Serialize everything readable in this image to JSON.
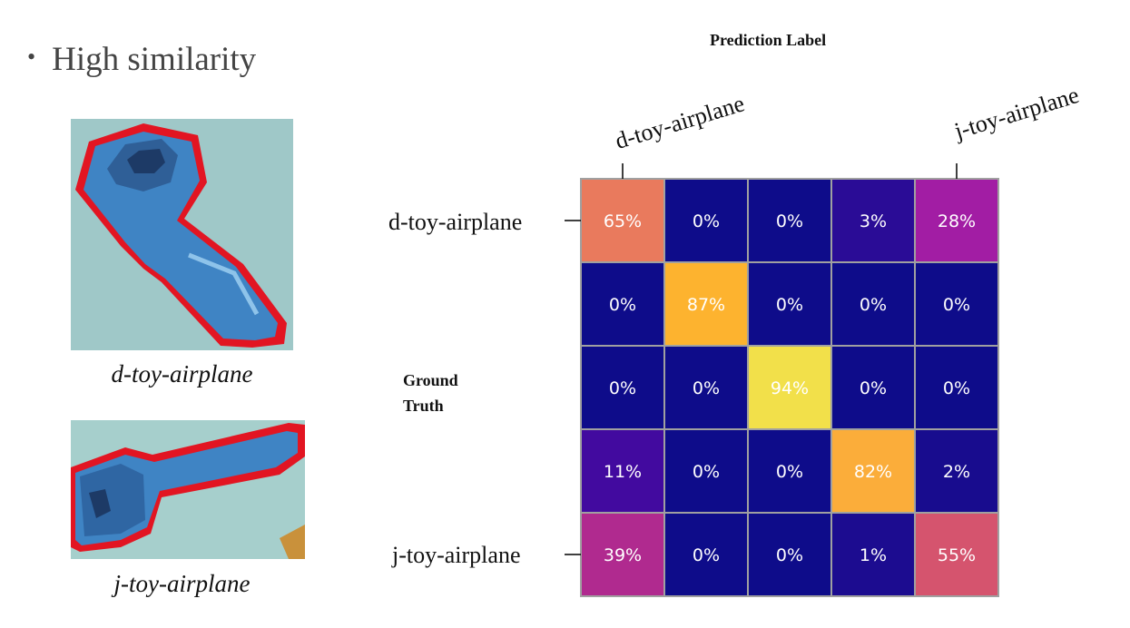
{
  "bullet": {
    "symbol": "•",
    "text": "High similarity"
  },
  "images": [
    {
      "caption": "d-toy-airplane"
    },
    {
      "caption": "j-toy-airplane"
    }
  ],
  "chart_data": {
    "type": "heatmap",
    "title": "Prediction Label",
    "ylabel_lines": [
      "Ground",
      "Truth"
    ],
    "col_labels": [
      "d-toy-airplane",
      "",
      "",
      "",
      "j-toy-airplane"
    ],
    "row_labels": [
      "d-toy-airplane",
      "",
      "",
      "",
      "j-toy-airplane"
    ],
    "values": [
      [
        65,
        0,
        0,
        3,
        28
      ],
      [
        0,
        87,
        0,
        0,
        0
      ],
      [
        0,
        0,
        94,
        0,
        0
      ],
      [
        11,
        0,
        0,
        82,
        2
      ],
      [
        39,
        0,
        0,
        1,
        55
      ]
    ],
    "cell_labels": [
      [
        "65%",
        "0%",
        "0%",
        "3%",
        "28%"
      ],
      [
        "0%",
        "87%",
        "0%",
        "0%",
        "0%"
      ],
      [
        "0%",
        "0%",
        "94%",
        "0%",
        "0%"
      ],
      [
        "11%",
        "0%",
        "0%",
        "82%",
        "2%"
      ],
      [
        "39%",
        "0%",
        "0%",
        "1%",
        "55%"
      ]
    ],
    "colormap": "plasma",
    "cell_colors": [
      [
        "#e97a5d",
        "#0e0c8a",
        "#0e0c8a",
        "#2a0c96",
        "#a21da4"
      ],
      [
        "#0e0c8a",
        "#fdb32f",
        "#0e0c8a",
        "#0e0c8a",
        "#0e0c8a"
      ],
      [
        "#0e0c8a",
        "#0e0c8a",
        "#f2e04a",
        "#0e0c8a",
        "#0e0c8a"
      ],
      [
        "#420a9f",
        "#0e0c8a",
        "#0e0c8a",
        "#fbad3a",
        "#180c8e"
      ],
      [
        "#b02a8f",
        "#0e0c8a",
        "#0e0c8a",
        "#1c0c90",
        "#d5546e"
      ]
    ],
    "text_color": "#ffffff",
    "grid_color": "#a0a0a0"
  }
}
